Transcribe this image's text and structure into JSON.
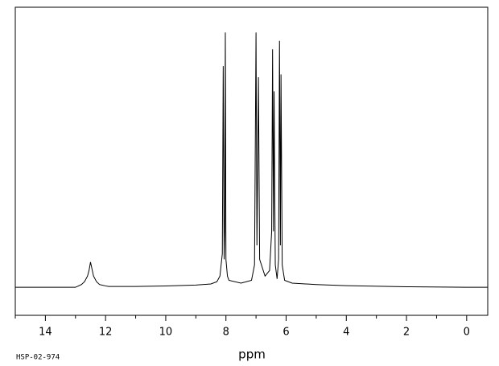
{
  "chart_data": {
    "type": "line",
    "xlabel": "ppm",
    "footnote": "HSP-02-974",
    "xlim": [
      15,
      -0.7
    ],
    "ylim": [
      -10,
      100
    ],
    "xticks": [
      14,
      12,
      10,
      8,
      6,
      4,
      2,
      0
    ],
    "xminorticks": [
      15,
      13,
      11,
      9,
      7,
      5,
      3,
      1
    ],
    "color": "#000000",
    "x": [
      15.0,
      13.0,
      12.9,
      12.8,
      12.7,
      12.6,
      12.55,
      12.5,
      12.45,
      12.4,
      12.3,
      12.2,
      12.0,
      11.9,
      11.0,
      10.0,
      9.0,
      8.5,
      8.3,
      8.2,
      8.12,
      8.09,
      8.06,
      8.04,
      8.02,
      8.0,
      7.95,
      7.9,
      7.5,
      7.15,
      7.05,
      7.0,
      6.97,
      6.92,
      6.88,
      6.7,
      6.55,
      6.48,
      6.45,
      6.42,
      6.4,
      6.36,
      6.3,
      6.25,
      6.22,
      6.19,
      6.17,
      6.13,
      6.05,
      5.8,
      5.0,
      4.0,
      2.0,
      0.0,
      -0.7
    ],
    "values": [
      0,
      0,
      0.5,
      1,
      2,
      4,
      6,
      9,
      6.5,
      4,
      2,
      1,
      0.5,
      0.3,
      0.3,
      0.5,
      0.8,
      1.2,
      2,
      4,
      12,
      79,
      10,
      20,
      91,
      10,
      4,
      2.5,
      1.5,
      2.5,
      8,
      91,
      15,
      75,
      10,
      4,
      6,
      20,
      85,
      20,
      70,
      8,
      3,
      10,
      88,
      15,
      76,
      8,
      2.5,
      1.5,
      1,
      0.6,
      0.2,
      0,
      0
    ]
  }
}
